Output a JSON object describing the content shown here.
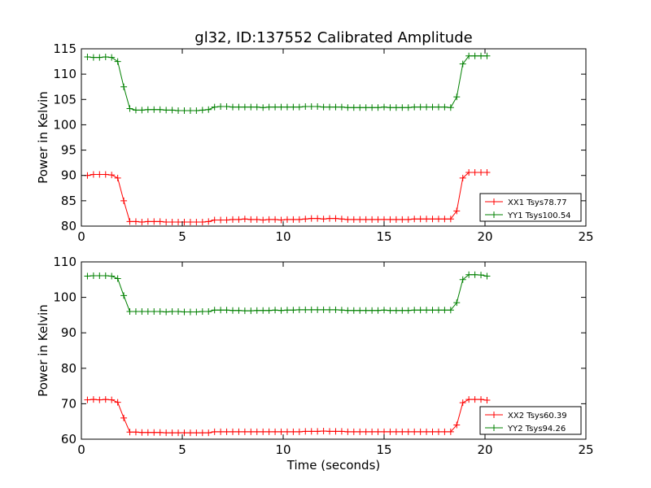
{
  "chart_data": [
    {
      "type": "line",
      "title": "gl32, ID:137552 Calibrated Amplitude",
      "xlabel": "",
      "ylabel": "Power in Kelvin",
      "xlim": [
        0,
        25
      ],
      "ylim": [
        80,
        115
      ],
      "xticks": [
        0,
        5,
        10,
        15,
        20,
        25
      ],
      "yticks": [
        80,
        85,
        90,
        95,
        100,
        105,
        110,
        115
      ],
      "grid": false,
      "legend_position": "lower-right",
      "marker": "+",
      "series": [
        {
          "name": "XX1 Tsys78.77",
          "color": "#ff0000",
          "x": [
            0.3,
            0.6,
            0.9,
            1.2,
            1.5,
            1.8,
            2.1,
            2.4,
            2.7,
            3.0,
            3.3,
            3.6,
            3.9,
            4.2,
            4.5,
            4.8,
            5.1,
            5.4,
            5.7,
            6.0,
            6.3,
            6.6,
            6.9,
            7.2,
            7.5,
            7.8,
            8.1,
            8.4,
            8.7,
            9.0,
            9.3,
            9.6,
            9.9,
            10.2,
            10.5,
            10.8,
            11.1,
            11.4,
            11.7,
            12.0,
            12.3,
            12.6,
            12.9,
            13.2,
            13.5,
            13.8,
            14.1,
            14.4,
            14.7,
            15.0,
            15.3,
            15.6,
            15.9,
            16.2,
            16.5,
            16.8,
            17.1,
            17.4,
            17.7,
            18.0,
            18.3,
            18.6,
            18.9,
            19.2,
            19.5,
            19.8,
            20.1
          ],
          "y": [
            90.0,
            90.2,
            90.2,
            90.2,
            90.1,
            89.5,
            85.0,
            80.9,
            80.9,
            80.8,
            80.9,
            80.9,
            80.9,
            80.8,
            80.8,
            80.8,
            80.8,
            80.8,
            80.8,
            80.8,
            80.9,
            81.2,
            81.2,
            81.2,
            81.3,
            81.3,
            81.4,
            81.3,
            81.3,
            81.2,
            81.3,
            81.3,
            81.2,
            81.3,
            81.3,
            81.3,
            81.4,
            81.5,
            81.5,
            81.4,
            81.5,
            81.5,
            81.4,
            81.3,
            81.3,
            81.3,
            81.3,
            81.3,
            81.3,
            81.3,
            81.3,
            81.3,
            81.3,
            81.3,
            81.4,
            81.4,
            81.4,
            81.4,
            81.4,
            81.4,
            81.4,
            83.0,
            89.5,
            90.6,
            90.6,
            90.6,
            90.6
          ]
        },
        {
          "name": "YY1 Tsys100.54",
          "color": "#008000",
          "x": [
            0.3,
            0.6,
            0.9,
            1.2,
            1.5,
            1.8,
            2.1,
            2.4,
            2.7,
            3.0,
            3.3,
            3.6,
            3.9,
            4.2,
            4.5,
            4.8,
            5.1,
            5.4,
            5.7,
            6.0,
            6.3,
            6.6,
            6.9,
            7.2,
            7.5,
            7.8,
            8.1,
            8.4,
            8.7,
            9.0,
            9.3,
            9.6,
            9.9,
            10.2,
            10.5,
            10.8,
            11.1,
            11.4,
            11.7,
            12.0,
            12.3,
            12.6,
            12.9,
            13.2,
            13.5,
            13.8,
            14.1,
            14.4,
            14.7,
            15.0,
            15.3,
            15.6,
            15.9,
            16.2,
            16.5,
            16.8,
            17.1,
            17.4,
            17.7,
            18.0,
            18.3,
            18.6,
            18.9,
            19.2,
            19.5,
            19.8,
            20.1
          ],
          "y": [
            113.4,
            113.3,
            113.3,
            113.4,
            113.3,
            112.5,
            107.5,
            103.2,
            102.9,
            102.9,
            103.0,
            103.0,
            103.0,
            102.9,
            102.9,
            102.8,
            102.8,
            102.8,
            102.8,
            102.9,
            103.0,
            103.5,
            103.6,
            103.6,
            103.5,
            103.5,
            103.5,
            103.5,
            103.5,
            103.4,
            103.5,
            103.5,
            103.5,
            103.5,
            103.5,
            103.5,
            103.6,
            103.6,
            103.6,
            103.5,
            103.5,
            103.5,
            103.5,
            103.4,
            103.4,
            103.4,
            103.4,
            103.4,
            103.4,
            103.5,
            103.4,
            103.4,
            103.4,
            103.4,
            103.5,
            103.5,
            103.5,
            103.5,
            103.5,
            103.5,
            103.4,
            105.5,
            112.0,
            113.6,
            113.6,
            113.6,
            113.6
          ]
        }
      ]
    },
    {
      "type": "line",
      "title": "",
      "xlabel": "Time (seconds)",
      "ylabel": "Power in Kelvin",
      "xlim": [
        0,
        25
      ],
      "ylim": [
        60,
        110
      ],
      "xticks": [
        0,
        5,
        10,
        15,
        20,
        25
      ],
      "yticks": [
        60,
        70,
        80,
        90,
        100,
        110
      ],
      "grid": false,
      "legend_position": "lower-right",
      "marker": "+",
      "series": [
        {
          "name": "XX2 Tsys60.39",
          "color": "#ff0000",
          "x": [
            0.3,
            0.6,
            0.9,
            1.2,
            1.5,
            1.8,
            2.1,
            2.4,
            2.7,
            3.0,
            3.3,
            3.6,
            3.9,
            4.2,
            4.5,
            4.8,
            5.1,
            5.4,
            5.7,
            6.0,
            6.3,
            6.6,
            6.9,
            7.2,
            7.5,
            7.8,
            8.1,
            8.4,
            8.7,
            9.0,
            9.3,
            9.6,
            9.9,
            10.2,
            10.5,
            10.8,
            11.1,
            11.4,
            11.7,
            12.0,
            12.3,
            12.6,
            12.9,
            13.2,
            13.5,
            13.8,
            14.1,
            14.4,
            14.7,
            15.0,
            15.3,
            15.6,
            15.9,
            16.2,
            16.5,
            16.8,
            17.1,
            17.4,
            17.7,
            18.0,
            18.3,
            18.6,
            18.9,
            19.2,
            19.5,
            19.8,
            20.1
          ],
          "y": [
            71.1,
            71.2,
            71.1,
            71.2,
            71.1,
            70.4,
            66.0,
            62.0,
            62.0,
            61.9,
            61.9,
            61.9,
            61.9,
            61.8,
            61.8,
            61.8,
            61.8,
            61.8,
            61.8,
            61.8,
            61.8,
            62.1,
            62.1,
            62.1,
            62.1,
            62.1,
            62.1,
            62.1,
            62.1,
            62.1,
            62.1,
            62.1,
            62.1,
            62.1,
            62.1,
            62.1,
            62.2,
            62.2,
            62.2,
            62.3,
            62.2,
            62.2,
            62.2,
            62.1,
            62.1,
            62.1,
            62.1,
            62.1,
            62.1,
            62.1,
            62.1,
            62.1,
            62.1,
            62.1,
            62.1,
            62.1,
            62.1,
            62.1,
            62.1,
            62.1,
            62.1,
            64.0,
            70.3,
            71.2,
            71.2,
            71.2,
            71.0
          ]
        },
        {
          "name": "YY2 Tsys94.26",
          "color": "#008000",
          "x": [
            0.3,
            0.6,
            0.9,
            1.2,
            1.5,
            1.8,
            2.1,
            2.4,
            2.7,
            3.0,
            3.3,
            3.6,
            3.9,
            4.2,
            4.5,
            4.8,
            5.1,
            5.4,
            5.7,
            6.0,
            6.3,
            6.6,
            6.9,
            7.2,
            7.5,
            7.8,
            8.1,
            8.4,
            8.7,
            9.0,
            9.3,
            9.6,
            9.9,
            10.2,
            10.5,
            10.8,
            11.1,
            11.4,
            11.7,
            12.0,
            12.3,
            12.6,
            12.9,
            13.2,
            13.5,
            13.8,
            14.1,
            14.4,
            14.7,
            15.0,
            15.3,
            15.6,
            15.9,
            16.2,
            16.5,
            16.8,
            17.1,
            17.4,
            17.7,
            18.0,
            18.3,
            18.6,
            18.9,
            19.2,
            19.5,
            19.8,
            20.1
          ],
          "y": [
            106.0,
            106.1,
            106.1,
            106.1,
            106.0,
            105.3,
            100.5,
            96.0,
            96.0,
            96.0,
            96.0,
            96.0,
            96.0,
            95.9,
            96.0,
            96.0,
            95.9,
            95.9,
            95.9,
            96.0,
            96.0,
            96.4,
            96.4,
            96.4,
            96.3,
            96.3,
            96.2,
            96.2,
            96.3,
            96.3,
            96.3,
            96.4,
            96.3,
            96.4,
            96.4,
            96.5,
            96.5,
            96.5,
            96.5,
            96.5,
            96.5,
            96.5,
            96.4,
            96.3,
            96.3,
            96.3,
            96.3,
            96.3,
            96.3,
            96.4,
            96.3,
            96.3,
            96.3,
            96.3,
            96.4,
            96.4,
            96.4,
            96.4,
            96.4,
            96.4,
            96.4,
            98.5,
            105.0,
            106.4,
            106.4,
            106.3,
            106.0
          ]
        }
      ]
    }
  ]
}
